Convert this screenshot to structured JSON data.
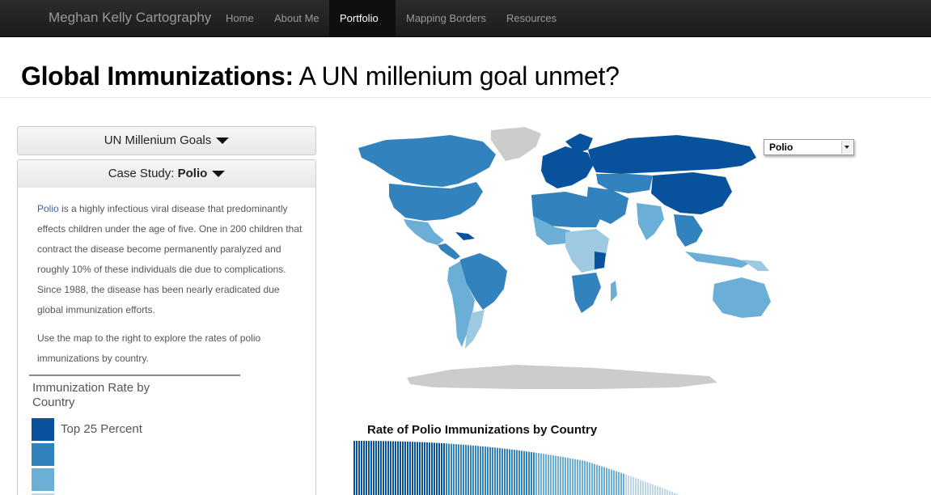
{
  "nav": {
    "brand": "Meghan Kelly Cartography",
    "items": [
      {
        "label": "Home"
      },
      {
        "label": "About Me"
      },
      {
        "label": "Portfolio"
      },
      {
        "label": "Mapping Borders"
      },
      {
        "label": "Resources"
      }
    ]
  },
  "header": {
    "title_bold": "Global Immunizations:",
    "title_rest": " A UN millenium goal unmet?"
  },
  "sidebar": {
    "section1": "UN Millenium Goals",
    "section2_prefix": "Case Study: ",
    "section2_topic": "Polio",
    "para1_link": "Polio",
    "para1_lines": [
      " is a highly infectious viral disease that predominantly",
      "effects children under the age of five. One in 200 children that",
      "contract the disease become permanently paralyzed and",
      "roughly 10% of these individuals die due to complications.",
      "Since 1988, the disease has been nearly eradicated due",
      "global immunization efforts."
    ],
    "para2_lines": [
      "Use the map to the right to explore the rates of polio",
      "immunizations by country."
    ],
    "legend": {
      "title": "Immunization Rate by Country",
      "top_label": "Top 25 Percent",
      "colors": [
        "#08519c",
        "#3182bd",
        "#6baed6",
        "#bdd7e7"
      ]
    }
  },
  "map": {
    "dropdown_value": "Polio",
    "no_data_color": "#cccccc"
  },
  "chart": {
    "title": "Rate of Polio Immunizations by Country"
  }
}
